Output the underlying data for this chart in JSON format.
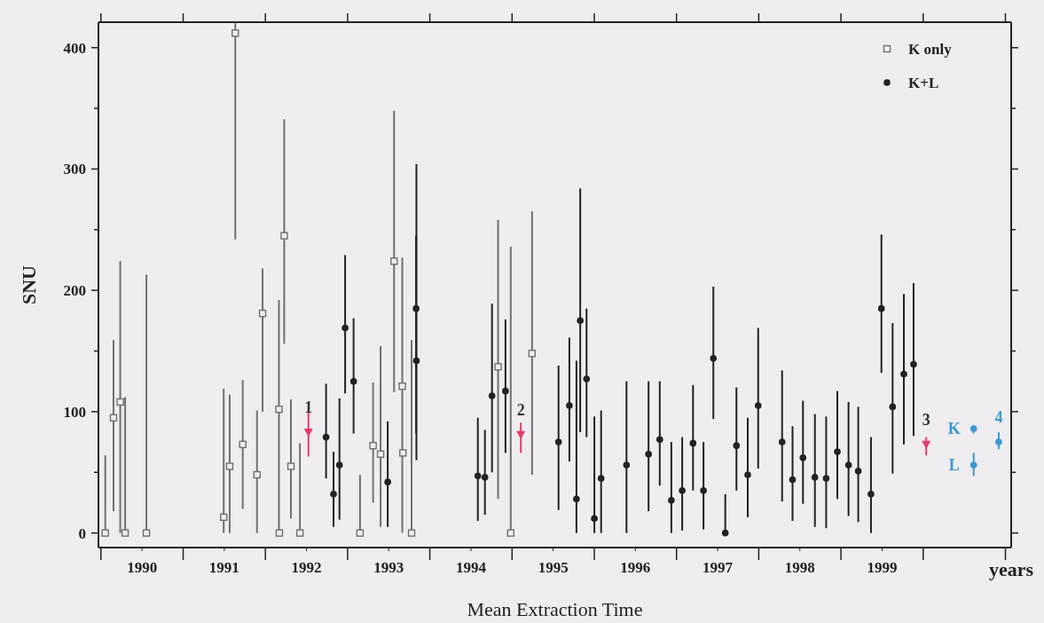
{
  "chart_data": {
    "type": "scatter",
    "xlabel": "Mean Extraction Time",
    "ylabel": "SNU",
    "xlim": [
      1989.97,
      2001.07
    ],
    "ylim": [
      -12,
      421
    ],
    "xticks": [
      {
        "value": 1990,
        "label": null
      },
      {
        "value": 1990.5,
        "label": "1990"
      },
      {
        "value": 1991,
        "label": null
      },
      {
        "value": 1991.5,
        "label": "1991"
      },
      {
        "value": 1992,
        "label": null
      },
      {
        "value": 1992.5,
        "label": "1992"
      },
      {
        "value": 1993,
        "label": null
      },
      {
        "value": 1993.5,
        "label": "1993"
      },
      {
        "value": 1994,
        "label": null
      },
      {
        "value": 1994.5,
        "label": "1994"
      },
      {
        "value": 1995,
        "label": null
      },
      {
        "value": 1995.5,
        "label": "1995"
      },
      {
        "value": 1996,
        "label": null
      },
      {
        "value": 1996.5,
        "label": "1996"
      },
      {
        "value": 1997,
        "label": null
      },
      {
        "value": 1997.5,
        "label": "1997"
      },
      {
        "value": 1998,
        "label": null
      },
      {
        "value": 1998.5,
        "label": "1998"
      },
      {
        "value": 1999,
        "label": null
      },
      {
        "value": 1999.5,
        "label": "1999"
      },
      {
        "value": 2000,
        "label": null
      },
      {
        "value": 2001,
        "label": null
      }
    ],
    "yticks": [
      0,
      {
        "value": 50,
        "label": null
      },
      100,
      {
        "value": 150,
        "label": null
      },
      200,
      {
        "value": 250,
        "label": null
      },
      300,
      {
        "value": 350,
        "label": null
      },
      400
    ],
    "legend": "top right",
    "grid": false,
    "series": [
      {
        "name": "K only",
        "color": "#707070",
        "marker": "square",
        "x": [
          1990.053,
          1990.153,
          1990.235,
          1990.294,
          1990.553,
          1991.493,
          1991.566,
          1991.634,
          1991.725,
          1991.898,
          1991.966,
          1992.165,
          1992.17,
          1992.229,
          1992.311,
          1992.42,
          1993.151,
          1993.31,
          1993.401,
          1993.565,
          1993.665,
          1993.673,
          1993.778,
          1994.83,
          1994.984,
          1995.243
        ],
        "values": [
          0,
          95,
          108,
          0,
          0,
          13,
          55,
          412,
          73,
          48,
          181,
          102,
          0,
          245,
          55,
          0,
          0,
          72,
          65,
          224,
          121,
          66,
          0,
          137,
          0,
          148
        ],
        "errors": [
          [
            0,
            64
          ],
          [
            18,
            159
          ],
          [
            0,
            224
          ],
          [
            0,
            112
          ],
          [
            0,
            213
          ],
          [
            0,
            119
          ],
          [
            0,
            114
          ],
          [
            242,
            421
          ],
          [
            20,
            126
          ],
          [
            0,
            101
          ],
          [
            100,
            218
          ],
          [
            0,
            192
          ],
          null,
          [
            156,
            341
          ],
          [
            12,
            110
          ],
          [
            0,
            74
          ],
          [
            0,
            48
          ],
          [
            25,
            124
          ],
          [
            5,
            154
          ],
          [
            116,
            348
          ],
          [
            0,
            227
          ],
          null,
          [
            0,
            159
          ],
          [
            28,
            258
          ],
          [
            0,
            236
          ],
          [
            48,
            265
          ]
        ]
      },
      {
        "name": "K+L",
        "color": "#222222",
        "marker": "circle",
        "x": [
          1992.738,
          1992.829,
          1992.901,
          1992.97,
          1993.073,
          1993.488,
          1993.833,
          1993.837,
          1994.584,
          1994.67,
          1994.756,
          1994.92,
          1995.565,
          1995.697,
          1995.783,
          1995.829,
          1995.906,
          1996.001,
          1996.083,
          1996.392,
          1996.66,
          1996.796,
          1996.937,
          1997.069,
          1997.201,
          1997.328,
          1997.448,
          1997.593,
          1997.729,
          1997.866,
          1997.993,
          1998.284,
          1998.411,
          1998.538,
          1998.683,
          1998.82,
          1998.956,
          1999.092,
          1999.21,
          1999.365,
          1999.492,
          1999.628,
          1999.765,
          1999.883
        ],
        "values": [
          79,
          32,
          56,
          169,
          125,
          42,
          185,
          142,
          47,
          46,
          113,
          117,
          75,
          105,
          28,
          175,
          127,
          12,
          45,
          56,
          65,
          77,
          27,
          35,
          74,
          35,
          144,
          0,
          72,
          48,
          105,
          75,
          44,
          62,
          46,
          45,
          67,
          56,
          51,
          32,
          185,
          104,
          131,
          139
        ],
        "errors": [
          [
            45,
            123
          ],
          [
            5,
            67
          ],
          [
            11,
            111
          ],
          [
            115,
            229
          ],
          [
            82,
            177
          ],
          [
            5,
            92
          ],
          [
            82,
            245
          ],
          [
            60,
            304
          ],
          [
            10,
            95
          ],
          [
            15,
            85
          ],
          [
            50,
            189
          ],
          [
            66,
            176
          ],
          [
            19,
            138
          ],
          [
            59,
            161
          ],
          [
            0,
            142
          ],
          [
            83,
            284
          ],
          [
            79,
            185
          ],
          [
            0,
            96
          ],
          [
            0,
            101
          ],
          [
            0,
            125
          ],
          [
            18,
            125
          ],
          [
            39,
            125
          ],
          [
            0,
            75
          ],
          [
            2,
            79
          ],
          [
            35,
            122
          ],
          [
            3,
            75
          ],
          [
            94,
            203
          ],
          [
            0,
            32
          ],
          [
            35,
            120
          ],
          [
            13,
            95
          ],
          [
            53,
            169
          ],
          [
            26,
            134
          ],
          [
            10,
            88
          ],
          [
            24,
            109
          ],
          [
            5,
            98
          ],
          [
            4,
            96
          ],
          [
            28,
            117
          ],
          [
            14,
            108
          ],
          [
            9,
            104
          ],
          [
            0,
            79
          ],
          [
            132,
            246
          ],
          [
            49,
            173
          ],
          [
            73,
            197
          ],
          [
            80,
            206
          ]
        ]
      },
      {
        "color": "#e8386a",
        "marker": "triangle",
        "x": [
          1992.524,
          1995.107,
          2000.037
        ],
        "values": [
          83,
          81,
          73
        ],
        "errors": [
          [
            63,
            102
          ],
          [
            66,
            91
          ],
          [
            64,
            79
          ]
        ]
      },
      {
        "color": "#3a9ad0",
        "marker": "circle",
        "x": [
          2000.614,
          2000.614,
          2000.918
        ],
        "values": [
          86,
          56,
          75
        ],
        "errors": [
          [
            82,
            89
          ],
          [
            47,
            66
          ],
          [
            69,
            83
          ]
        ]
      }
    ],
    "annotations": [
      {
        "text": "1",
        "x": 1992.524,
        "y": 83
      },
      {
        "text": "2",
        "x": 1995.107,
        "y": 81
      },
      {
        "text": "3",
        "x": 2000.037,
        "y": 73
      },
      {
        "text": "K",
        "x": 2000.614,
        "y": 86
      },
      {
        "text": "L",
        "x": 2000.614,
        "y": 56
      },
      {
        "text": "4",
        "x": 2000.918,
        "y": 75
      },
      "years"
    ]
  }
}
